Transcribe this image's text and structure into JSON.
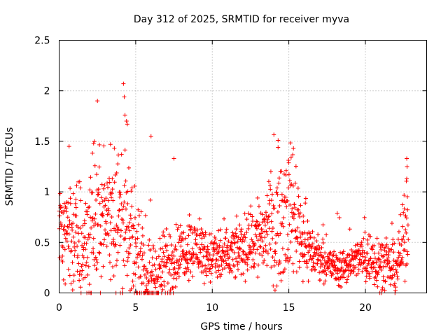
{
  "chart_data": {
    "type": "scatter",
    "title": "Day 312 of 2025, SRMTID for receiver myva",
    "xlabel": "GPS time / hours",
    "ylabel": "SRMTID / TECUs",
    "xlim": [
      0,
      24
    ],
    "ylim": [
      0,
      2.5
    ],
    "xticks": [
      0,
      5,
      10,
      15,
      20
    ],
    "yticks": [
      0,
      0.5,
      1,
      1.5,
      2,
      2.5
    ],
    "xtick_labels": [
      "0",
      "5",
      "10",
      "15",
      "20"
    ],
    "ytick_labels": [
      "0",
      "0.5",
      "1",
      "1.5",
      "2",
      "2.5"
    ],
    "grid": true,
    "marker": "plus",
    "marker_color": "#ff0000",
    "envelope": {
      "description": "approximate central trend of the point cloud",
      "x": [
        0,
        0.5,
        1,
        1.5,
        2,
        2.5,
        3,
        3.5,
        4,
        4.5,
        5,
        5.5,
        6,
        6.5,
        7,
        7.5,
        8,
        8.5,
        9,
        9.5,
        10,
        10.5,
        11,
        11.5,
        12,
        12.5,
        13,
        13.5,
        14,
        14.5,
        15,
        15.5,
        16,
        16.5,
        17,
        17.5,
        18,
        18.5,
        19,
        19.5,
        20,
        20.5,
        21,
        21.5,
        22,
        22.5,
        22.8
      ],
      "center": [
        0.7,
        0.65,
        0.55,
        0.45,
        0.6,
        0.7,
        0.75,
        0.8,
        0.7,
        0.55,
        0.35,
        0.2,
        0.15,
        0.2,
        0.25,
        0.35,
        0.4,
        0.45,
        0.45,
        0.4,
        0.35,
        0.35,
        0.35,
        0.4,
        0.45,
        0.5,
        0.55,
        0.6,
        0.65,
        0.75,
        0.85,
        0.75,
        0.5,
        0.4,
        0.35,
        0.3,
        0.25,
        0.25,
        0.3,
        0.35,
        0.35,
        0.35,
        0.3,
        0.25,
        0.25,
        0.5,
        0.8
      ],
      "spread": [
        0.3,
        0.3,
        0.35,
        0.35,
        0.35,
        0.35,
        0.35,
        0.35,
        0.4,
        0.35,
        0.25,
        0.2,
        0.2,
        0.2,
        0.2,
        0.2,
        0.15,
        0.15,
        0.15,
        0.15,
        0.15,
        0.15,
        0.15,
        0.15,
        0.15,
        0.2,
        0.25,
        0.25,
        0.3,
        0.35,
        0.35,
        0.3,
        0.2,
        0.15,
        0.1,
        0.1,
        0.1,
        0.1,
        0.1,
        0.1,
        0.15,
        0.15,
        0.15,
        0.12,
        0.15,
        0.2,
        0.3
      ]
    },
    "outliers": [
      {
        "x": 2.5,
        "y": 1.9
      },
      {
        "x": 4.2,
        "y": 2.07
      },
      {
        "x": 4.25,
        "y": 1.94
      },
      {
        "x": 4.3,
        "y": 1.76
      },
      {
        "x": 4.4,
        "y": 1.7
      },
      {
        "x": 4.45,
        "y": 1.67
      },
      {
        "x": 6.0,
        "y": 1.55
      },
      {
        "x": 14.3,
        "y": 1.51
      },
      {
        "x": 15.3,
        "y": 1.43
      },
      {
        "x": 0.65,
        "y": 1.45
      },
      {
        "x": 3.35,
        "y": 1.47
      },
      {
        "x": 2.25,
        "y": 1.48
      },
      {
        "x": 7.5,
        "y": 1.33
      },
      {
        "x": 22.7,
        "y": 1.33
      },
      {
        "x": 22.72,
        "y": 1.25
      },
      {
        "x": 22.7,
        "y": 1.13
      }
    ]
  }
}
